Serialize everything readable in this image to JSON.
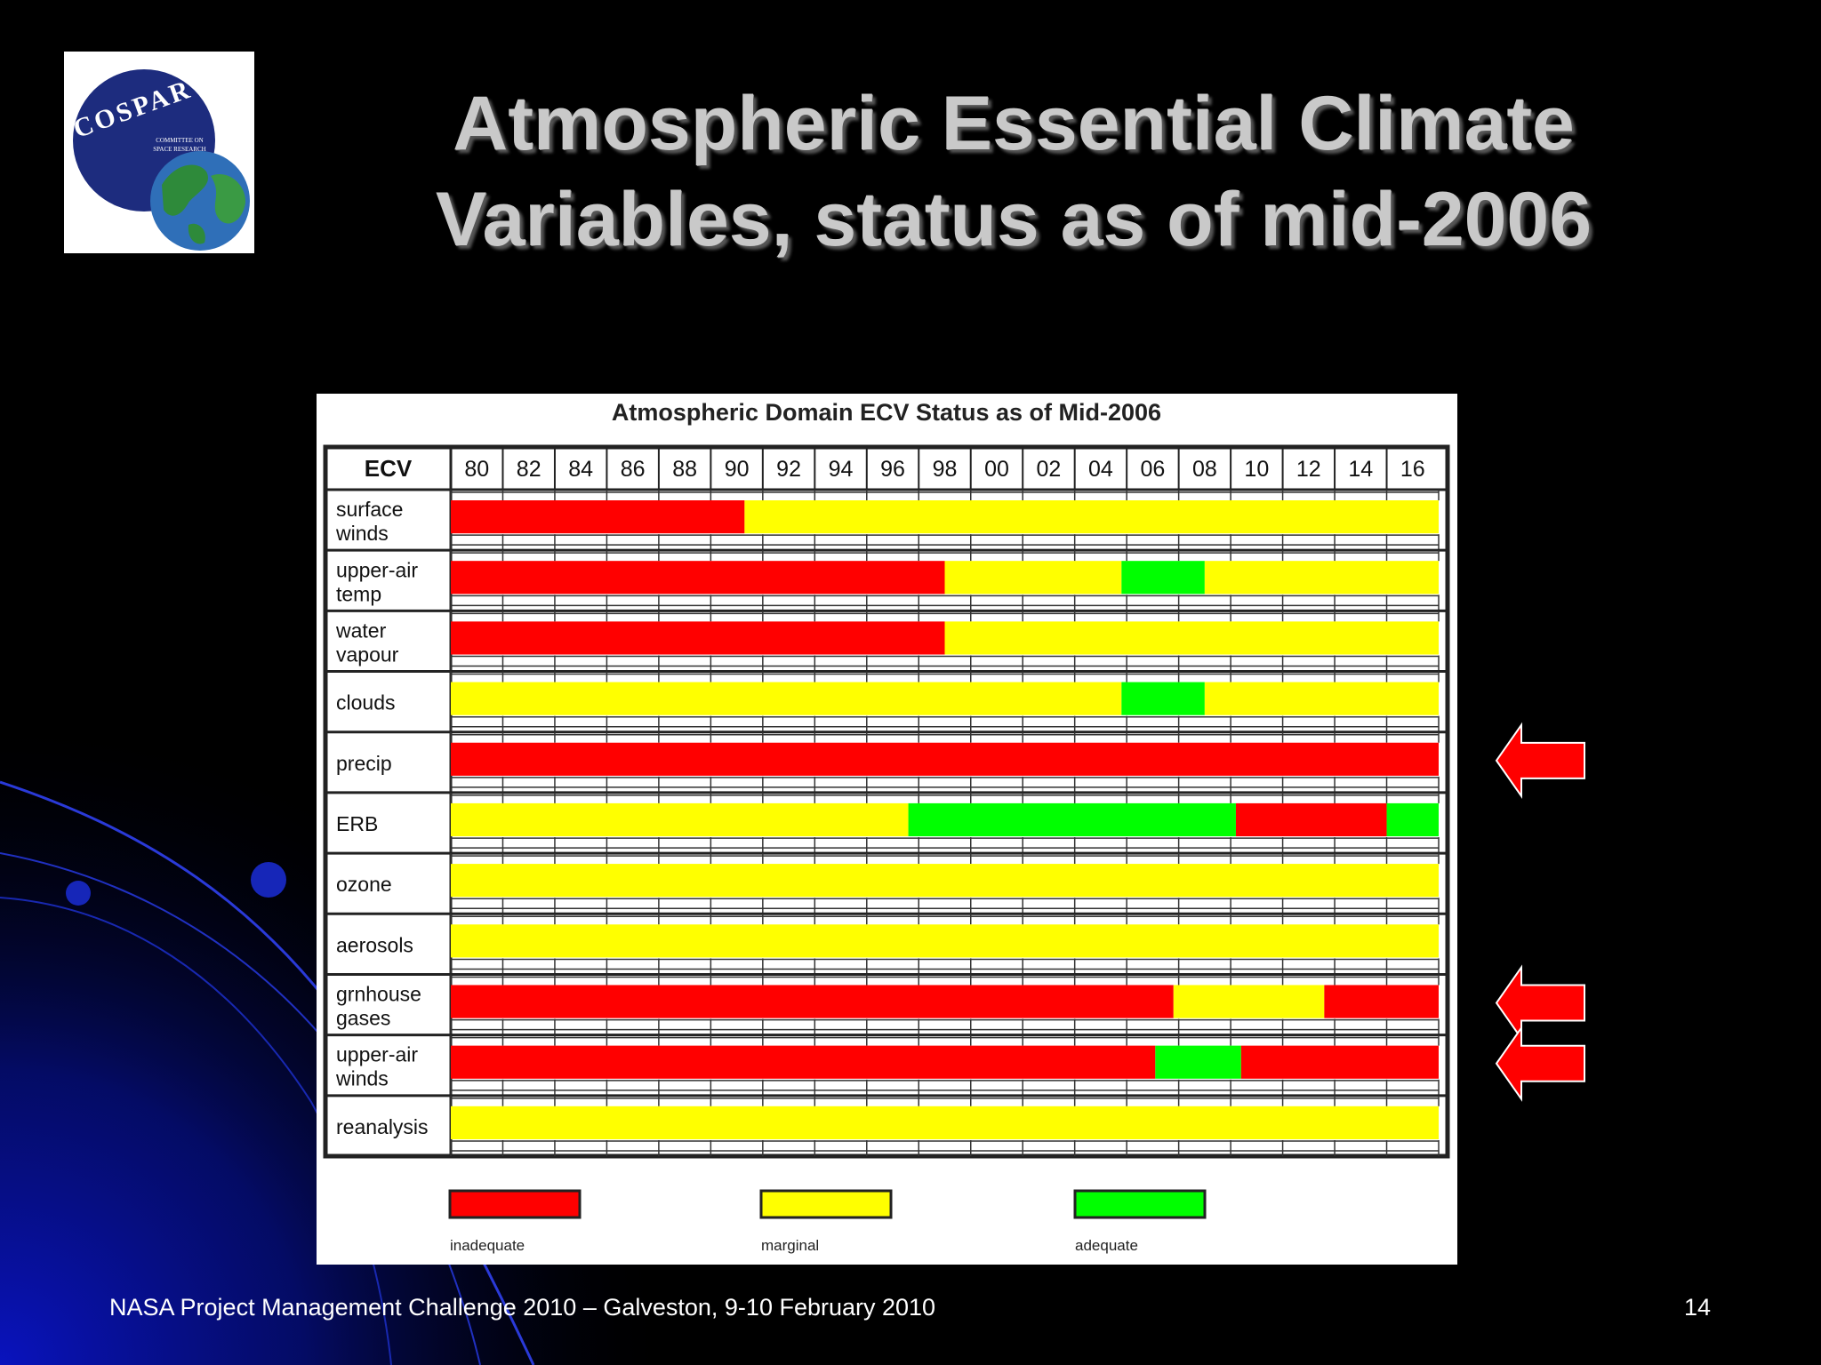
{
  "slide": {
    "title_line1": "Atmospheric Essential Climate",
    "title_line2": "Variables, status as of mid-2006",
    "footer": "NASA Project Management Challenge 2010 – Galveston, 9-10 February 2010",
    "page_number": "14",
    "logo_text": "COSPAR",
    "logo_subtext": [
      "COMMITTEE ON",
      "SPACE RESEARCH"
    ],
    "arrow_rows": [
      "precip",
      "grnhouse gases",
      "upper-air winds"
    ],
    "colors": {
      "background": "#000000",
      "title": "#c9c9c9",
      "arrow": "#ff0000",
      "swirl": "#0a14a0"
    }
  },
  "chart_data": {
    "type": "table",
    "title": "Atmospheric Domain ECV Status as of Mid-2006",
    "header_label": "ECV",
    "columns": [
      "80",
      "82",
      "84",
      "86",
      "88",
      "90",
      "92",
      "94",
      "96",
      "98",
      "00",
      "02",
      "04",
      "06",
      "08",
      "10",
      "12",
      "14",
      "16"
    ],
    "rows": [
      {
        "label": [
          "surface",
          "winds"
        ],
        "segments": [
          {
            "status": "inadequate",
            "from": 1980,
            "to": 1991.3
          },
          {
            "status": "marginal",
            "from": 1991.3,
            "to": 2018
          }
        ]
      },
      {
        "label": [
          "upper-air",
          "temp"
        ],
        "segments": [
          {
            "status": "inadequate",
            "from": 1980,
            "to": 1999
          },
          {
            "status": "marginal",
            "from": 1999,
            "to": 2005.8
          },
          {
            "status": "adequate",
            "from": 2005.8,
            "to": 2009
          },
          {
            "status": "marginal",
            "from": 2009,
            "to": 2018
          }
        ]
      },
      {
        "label": [
          "water",
          "vapour"
        ],
        "segments": [
          {
            "status": "inadequate",
            "from": 1980,
            "to": 1999
          },
          {
            "status": "marginal",
            "from": 1999,
            "to": 2018
          }
        ]
      },
      {
        "label": [
          "clouds"
        ],
        "segments": [
          {
            "status": "marginal",
            "from": 1980,
            "to": 2005.8
          },
          {
            "status": "adequate",
            "from": 2005.8,
            "to": 2009
          },
          {
            "status": "marginal",
            "from": 2009,
            "to": 2018
          }
        ]
      },
      {
        "label": [
          "precip"
        ],
        "segments": [
          {
            "status": "inadequate",
            "from": 1980,
            "to": 2018
          }
        ]
      },
      {
        "label": [
          "ERB"
        ],
        "segments": [
          {
            "status": "marginal",
            "from": 1980,
            "to": 1997.6
          },
          {
            "status": "adequate",
            "from": 1997.6,
            "to": 2010.2
          },
          {
            "status": "inadequate",
            "from": 2010.2,
            "to": 2016
          },
          {
            "status": "adequate",
            "from": 2016,
            "to": 2018
          }
        ]
      },
      {
        "label": [
          "ozone"
        ],
        "segments": [
          {
            "status": "marginal",
            "from": 1980,
            "to": 2018
          }
        ]
      },
      {
        "label": [
          "aerosols"
        ],
        "segments": [
          {
            "status": "marginal",
            "from": 1980,
            "to": 2018
          }
        ]
      },
      {
        "label": [
          "grnhouse",
          "gases"
        ],
        "segments": [
          {
            "status": "inadequate",
            "from": 1980,
            "to": 2007.8
          },
          {
            "status": "marginal",
            "from": 2007.8,
            "to": 2013.6
          },
          {
            "status": "inadequate",
            "from": 2013.6,
            "to": 2018
          }
        ]
      },
      {
        "label": [
          "upper-air",
          "winds"
        ],
        "segments": [
          {
            "status": "inadequate",
            "from": 1980,
            "to": 2007.1
          },
          {
            "status": "adequate",
            "from": 2007.1,
            "to": 2010.4
          },
          {
            "status": "inadequate",
            "from": 2010.4,
            "to": 2018
          }
        ]
      },
      {
        "label": [
          "reanalysis"
        ],
        "segments": [
          {
            "status": "marginal",
            "from": 1980,
            "to": 2018
          }
        ]
      }
    ],
    "legend": [
      {
        "status": "inadequate",
        "label": "inadequate",
        "color": "#ff0000"
      },
      {
        "status": "marginal",
        "label": "marginal",
        "color": "#ffff00"
      },
      {
        "status": "adequate",
        "label": "adequate",
        "color": "#00ff00"
      }
    ],
    "x_range": [
      1980,
      2018
    ]
  }
}
